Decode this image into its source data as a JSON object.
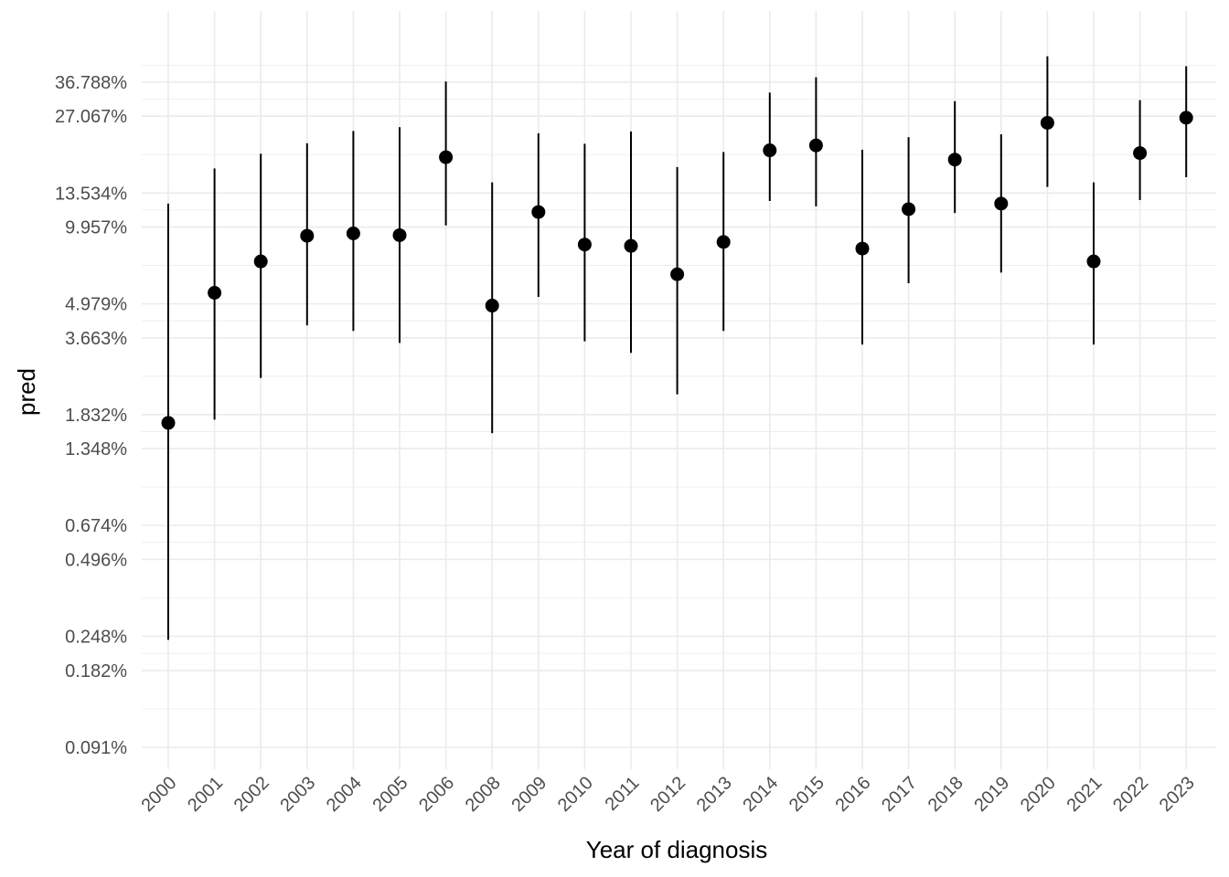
{
  "chart_data": {
    "type": "scatter",
    "title": "",
    "xlabel": "Year of diagnosis",
    "ylabel": "pred",
    "y_scale": "log",
    "ylim": [
      0.078,
      60
    ],
    "grid": true,
    "legend": "none",
    "colors": {
      "point": "#000000",
      "error_bar": "#000000",
      "grid": "#ebebeb",
      "tick_text": "#4d4d4d"
    },
    "y_ticks": [
      0.091,
      0.182,
      0.248,
      0.496,
      0.674,
      1.348,
      1.832,
      3.663,
      4.979,
      9.957,
      13.534,
      27.067,
      36.788
    ],
    "y_tick_labels": [
      "0.091%",
      "0.182%",
      "0.248%",
      "0.496%",
      "0.674%",
      "1.348%",
      "1.832%",
      "3.663%",
      "4.979%",
      "9.957%",
      "13.534%",
      "27.067%",
      "36.788%"
    ],
    "categories": [
      "2000",
      "2001",
      "2002",
      "2003",
      "2004",
      "2005",
      "2006",
      "2008",
      "2009",
      "2010",
      "2011",
      "2012",
      "2013",
      "2014",
      "2015",
      "2016",
      "2017",
      "2018",
      "2019",
      "2020",
      "2021",
      "2022",
      "2023"
    ],
    "series": [
      {
        "values": [
          1.7,
          5.5,
          7.3,
          9.2,
          9.4,
          9.25,
          18.7,
          4.9,
          11.4,
          8.5,
          8.4,
          6.5,
          8.7,
          19.9,
          20.8,
          8.2,
          11.7,
          18.3,
          12.3,
          25.5,
          7.3,
          19.4,
          26.7
        ],
        "lower": [
          0.24,
          1.75,
          2.55,
          4.1,
          3.9,
          3.5,
          10.1,
          1.55,
          5.3,
          3.55,
          3.2,
          2.2,
          3.9,
          12.6,
          12.0,
          3.45,
          6.0,
          11.3,
          6.6,
          14.3,
          3.45,
          12.7,
          15.6
        ],
        "upper": [
          12.3,
          16.9,
          19.3,
          21.2,
          23.7,
          24.5,
          37.0,
          14.9,
          23.2,
          21.1,
          23.6,
          17.1,
          19.6,
          33.5,
          38.5,
          20.0,
          22.4,
          31.0,
          23.0,
          46.5,
          14.9,
          31.3,
          42.5
        ]
      }
    ]
  }
}
